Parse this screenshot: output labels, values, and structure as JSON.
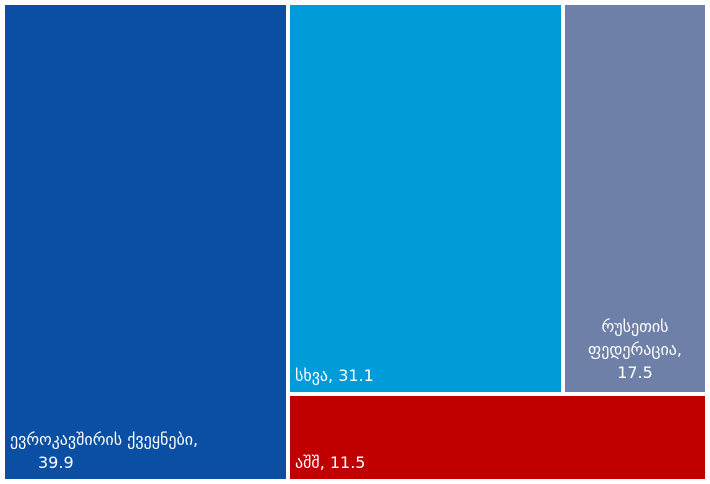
{
  "chart_data": {
    "type": "treemap",
    "items": [
      {
        "name": "ევროკავშირის ქვეყნები",
        "value": 39.9,
        "label": "ევროკავშირის ქვეყნები,",
        "value_label": "39.9",
        "color": "#0a4fa4"
      },
      {
        "name": "სხვა",
        "value": 31.1,
        "label": "სხვა, 31.1",
        "color": "#009bd9"
      },
      {
        "name": "რუსეთის ფედერაცია",
        "value": 17.5,
        "label_lines": [
          "რუსეთის",
          "ფედერაცია,",
          "17.5"
        ],
        "color": "#6e7fa8"
      },
      {
        "name": "აშშ",
        "value": 11.5,
        "label": "აშშ, 11.5",
        "color": "#c00000"
      }
    ]
  }
}
